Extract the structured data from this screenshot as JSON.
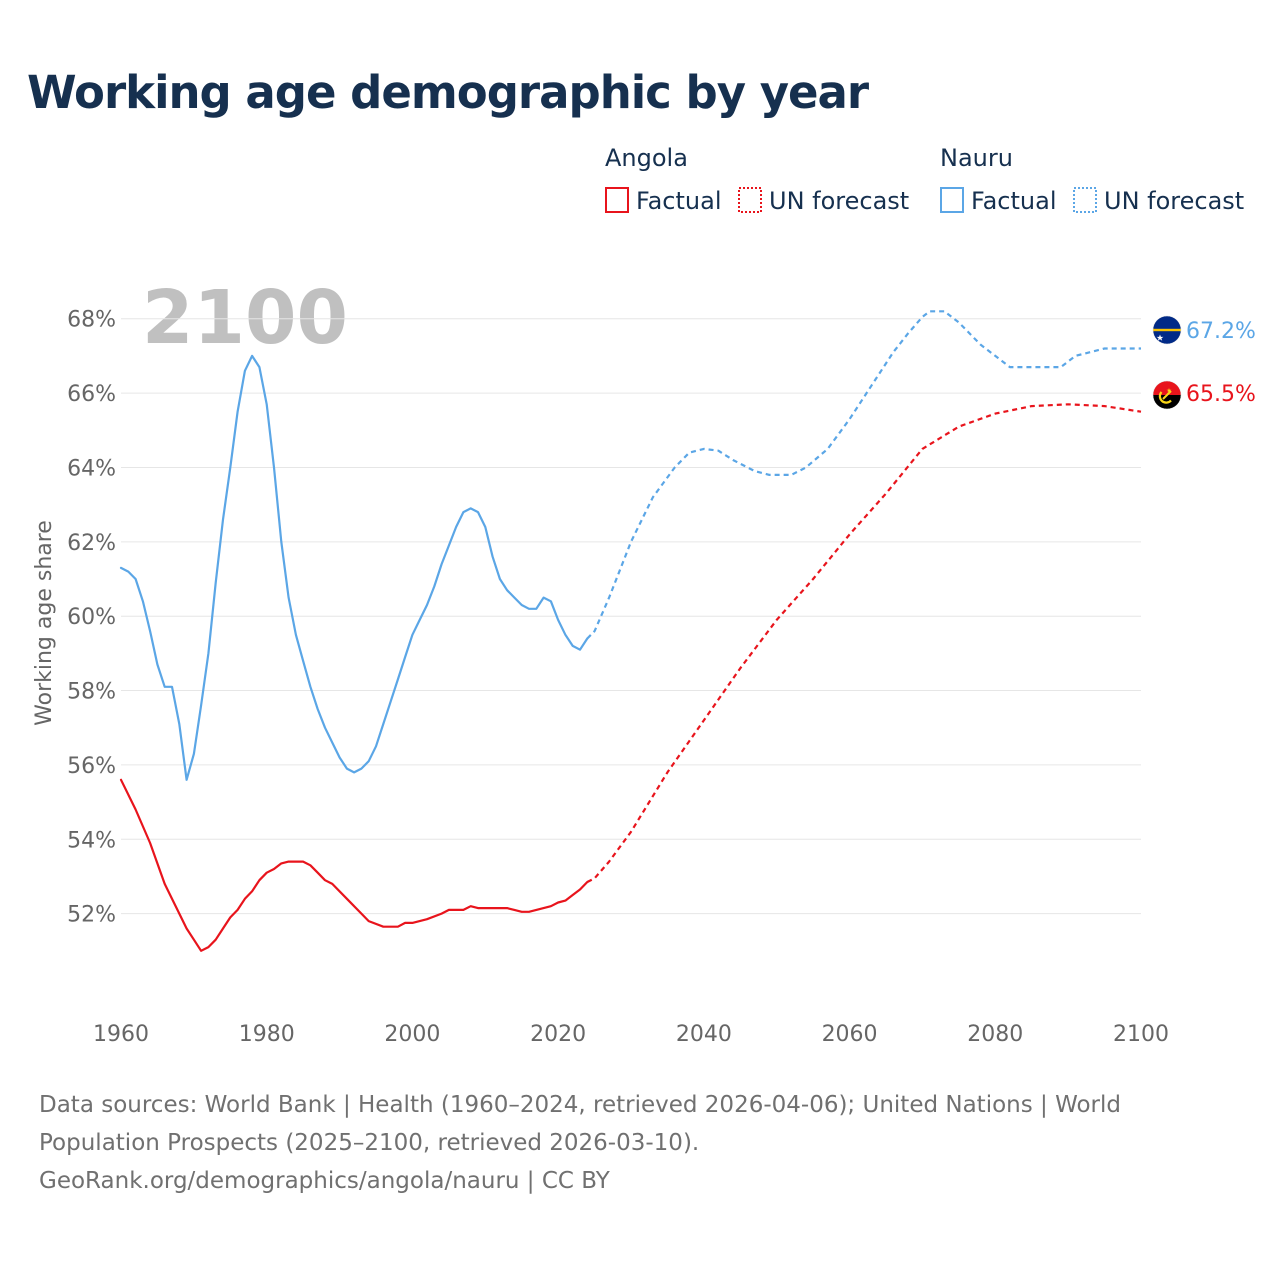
{
  "title": "Working age demographic by year",
  "footer": {
    "line1": "Data sources: World Bank | Health (1960–2024, retrieved 2026-04-06); United Nations | World",
    "line2": "Population Prospects (2025–2100, retrieved 2026-03-10).",
    "line3": "GeoRank.org/demographics/angola/nauru | CC BY"
  },
  "legend": {
    "groups": [
      {
        "country": "Angola",
        "factual_label": "Factual",
        "forecast_label": "UN forecast",
        "color": "#e8141c"
      },
      {
        "country": "Nauru",
        "factual_label": "Factual",
        "forecast_label": "UN forecast",
        "color": "#5ba6e6"
      }
    ]
  },
  "chart_data": {
    "type": "line",
    "title": "Working age demographic by year",
    "xlabel": "",
    "ylabel": "Working age share",
    "xlim": [
      1960,
      2100
    ],
    "ylim": [
      50,
      68.8
    ],
    "x_ticks": [
      1960,
      1980,
      2000,
      2020,
      2040,
      2060,
      2080,
      2100
    ],
    "x_tick_labels": [
      "1960",
      "1980",
      "2000",
      "2020",
      "2040",
      "2060",
      "2080",
      "2100"
    ],
    "y_ticks": [
      52,
      54,
      56,
      58,
      60,
      62,
      64,
      66,
      68
    ],
    "y_tick_labels": [
      "52%",
      "54%",
      "56%",
      "58%",
      "60%",
      "62%",
      "64%",
      "66%",
      "68%"
    ],
    "grid": true,
    "year_label": "2100",
    "forecast_start": 2024,
    "series": [
      {
        "name": "Angola",
        "color": "#e8141c",
        "flag_icon": "angola-flag-icon",
        "end_label": "65.5%",
        "points": [
          [
            1960,
            55.6
          ],
          [
            1962,
            54.8
          ],
          [
            1964,
            53.9
          ],
          [
            1966,
            52.8
          ],
          [
            1968,
            52.0
          ],
          [
            1969,
            51.6
          ],
          [
            1970,
            51.3
          ],
          [
            1971,
            51.0
          ],
          [
            1972,
            51.1
          ],
          [
            1973,
            51.3
          ],
          [
            1974,
            51.6
          ],
          [
            1975,
            51.9
          ],
          [
            1976,
            52.1
          ],
          [
            1977,
            52.4
          ],
          [
            1978,
            52.6
          ],
          [
            1979,
            52.9
          ],
          [
            1980,
            53.1
          ],
          [
            1981,
            53.2
          ],
          [
            1982,
            53.35
          ],
          [
            1983,
            53.4
          ],
          [
            1985,
            53.4
          ],
          [
            1986,
            53.3
          ],
          [
            1987,
            53.1
          ],
          [
            1988,
            52.9
          ],
          [
            1989,
            52.8
          ],
          [
            1991,
            52.4
          ],
          [
            1993,
            52.0
          ],
          [
            1994,
            51.8
          ],
          [
            1996,
            51.65
          ],
          [
            1998,
            51.65
          ],
          [
            1999,
            51.75
          ],
          [
            2000,
            51.75
          ],
          [
            2001,
            51.8
          ],
          [
            2002,
            51.85
          ],
          [
            2004,
            52.0
          ],
          [
            2005,
            52.1
          ],
          [
            2007,
            52.1
          ],
          [
            2008,
            52.2
          ],
          [
            2009,
            52.15
          ],
          [
            2013,
            52.15
          ],
          [
            2014,
            52.1
          ],
          [
            2015,
            52.05
          ],
          [
            2016,
            52.05
          ],
          [
            2017,
            52.1
          ],
          [
            2018,
            52.15
          ],
          [
            2019,
            52.2
          ],
          [
            2020,
            52.3
          ],
          [
            2021,
            52.35
          ],
          [
            2022,
            52.5
          ],
          [
            2023,
            52.65
          ],
          [
            2024,
            52.85
          ]
        ],
        "forecast_points": [
          [
            2024,
            52.85
          ],
          [
            2025,
            52.95
          ],
          [
            2027,
            53.4
          ],
          [
            2030,
            54.2
          ],
          [
            2035,
            55.8
          ],
          [
            2040,
            57.2
          ],
          [
            2045,
            58.6
          ],
          [
            2050,
            59.9
          ],
          [
            2055,
            61.0
          ],
          [
            2060,
            62.2
          ],
          [
            2065,
            63.3
          ],
          [
            2070,
            64.5
          ],
          [
            2075,
            65.1
          ],
          [
            2080,
            65.45
          ],
          [
            2085,
            65.65
          ],
          [
            2090,
            65.7
          ],
          [
            2095,
            65.65
          ],
          [
            2100,
            65.5
          ]
        ]
      },
      {
        "name": "Nauru",
        "color": "#5ba6e6",
        "flag_icon": "nauru-flag-icon",
        "end_label": "67.2%",
        "points": [
          [
            1960,
            61.3
          ],
          [
            1961,
            61.2
          ],
          [
            1962,
            61.0
          ],
          [
            1963,
            60.4
          ],
          [
            1964,
            59.6
          ],
          [
            1965,
            58.7
          ],
          [
            1966,
            58.1
          ],
          [
            1967,
            58.1
          ],
          [
            1968,
            57.1
          ],
          [
            1969,
            55.6
          ],
          [
            1970,
            56.3
          ],
          [
            1971,
            57.6
          ],
          [
            1972,
            59.0
          ],
          [
            1973,
            60.9
          ],
          [
            1974,
            62.6
          ],
          [
            1975,
            64.0
          ],
          [
            1976,
            65.5
          ],
          [
            1977,
            66.6
          ],
          [
            1978,
            67.0
          ],
          [
            1979,
            66.7
          ],
          [
            1980,
            65.7
          ],
          [
            1981,
            64.0
          ],
          [
            1982,
            62.0
          ],
          [
            1983,
            60.5
          ],
          [
            1984,
            59.5
          ],
          [
            1985,
            58.8
          ],
          [
            1986,
            58.1
          ],
          [
            1987,
            57.5
          ],
          [
            1988,
            57.0
          ],
          [
            1989,
            56.6
          ],
          [
            1990,
            56.2
          ],
          [
            1991,
            55.9
          ],
          [
            1992,
            55.8
          ],
          [
            1993,
            55.9
          ],
          [
            1994,
            56.1
          ],
          [
            1995,
            56.5
          ],
          [
            1996,
            57.1
          ],
          [
            1997,
            57.7
          ],
          [
            1998,
            58.3
          ],
          [
            1999,
            58.9
          ],
          [
            2000,
            59.5
          ],
          [
            2001,
            59.9
          ],
          [
            2002,
            60.3
          ],
          [
            2003,
            60.8
          ],
          [
            2004,
            61.4
          ],
          [
            2005,
            61.9
          ],
          [
            2006,
            62.4
          ],
          [
            2007,
            62.8
          ],
          [
            2008,
            62.9
          ],
          [
            2009,
            62.8
          ],
          [
            2010,
            62.4
          ],
          [
            2011,
            61.6
          ],
          [
            2012,
            61.0
          ],
          [
            2013,
            60.7
          ],
          [
            2014,
            60.5
          ],
          [
            2015,
            60.3
          ],
          [
            2016,
            60.2
          ],
          [
            2017,
            60.2
          ],
          [
            2018,
            60.5
          ],
          [
            2019,
            60.4
          ],
          [
            2020,
            59.9
          ],
          [
            2021,
            59.5
          ],
          [
            2022,
            59.2
          ],
          [
            2023,
            59.1
          ],
          [
            2024,
            59.4
          ]
        ],
        "forecast_points": [
          [
            2024,
            59.4
          ],
          [
            2025,
            59.6
          ],
          [
            2027,
            60.5
          ],
          [
            2030,
            62.0
          ],
          [
            2033,
            63.2
          ],
          [
            2036,
            64.0
          ],
          [
            2038,
            64.4
          ],
          [
            2040,
            64.5
          ],
          [
            2042,
            64.45
          ],
          [
            2044,
            64.2
          ],
          [
            2047,
            63.9
          ],
          [
            2049,
            63.8
          ],
          [
            2052,
            63.8
          ],
          [
            2054,
            64.0
          ],
          [
            2057,
            64.5
          ],
          [
            2060,
            65.3
          ],
          [
            2063,
            66.2
          ],
          [
            2066,
            67.1
          ],
          [
            2068,
            67.6
          ],
          [
            2070,
            68.05
          ],
          [
            2071,
            68.2
          ],
          [
            2073,
            68.2
          ],
          [
            2075,
            67.9
          ],
          [
            2078,
            67.3
          ],
          [
            2080,
            67.0
          ],
          [
            2082,
            66.7
          ],
          [
            2089,
            66.7
          ],
          [
            2091,
            67.0
          ],
          [
            2093,
            67.1
          ],
          [
            2095,
            67.2
          ],
          [
            2100,
            67.2
          ]
        ]
      }
    ]
  }
}
